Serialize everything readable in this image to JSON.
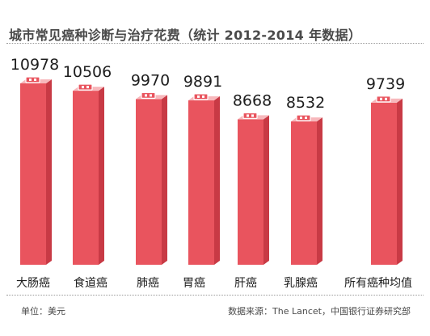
{
  "title": "城市常见癌种诊断与治疗花费（统计 2012-2014 年数据）",
  "footer": {
    "unit": "单位：美元",
    "source": "数据来源：The Lancet，中国银行证券研究部"
  },
  "colors": {
    "bar_front": "#e9545e",
    "bar_side": "#c83a45",
    "bar_top": "#f7b8bc",
    "icon": "#ffffff"
  },
  "chart_data": {
    "type": "bar",
    "title": "城市常见癌种诊断与治疗花费（统计 2012-2014 年数据）",
    "categories": [
      "大肠癌",
      "食道癌",
      "肺癌",
      "胃癌",
      "肝癌",
      "乳腺癌",
      "所有癌种均值"
    ],
    "values": [
      10978,
      10506,
      9970,
      9891,
      8668,
      8532,
      9739
    ],
    "unit": "美元",
    "xlabel": "",
    "ylabel": "",
    "grid": false,
    "legend": "none"
  }
}
